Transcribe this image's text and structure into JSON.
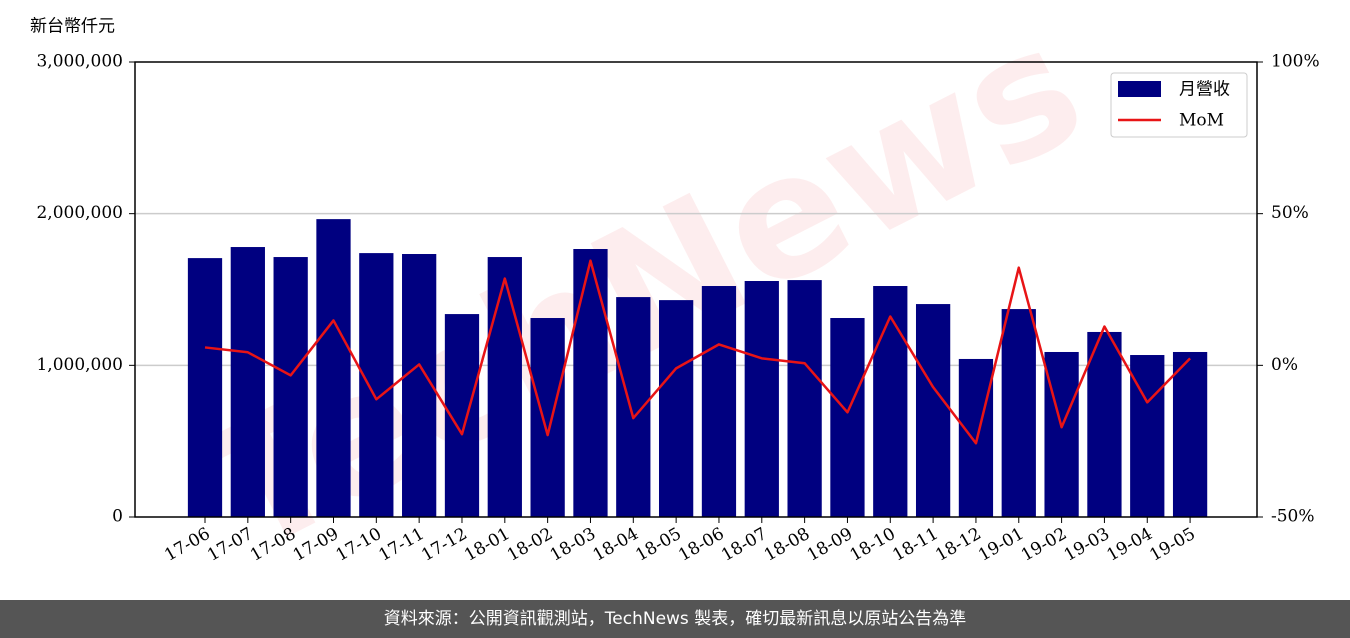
{
  "chart_data": {
    "type": "bar",
    "y_label": "新台幣仟元",
    "watermark": "TechNews",
    "categories": [
      "17-06",
      "17-07",
      "17-08",
      "17-09",
      "17-10",
      "17-11",
      "17-12",
      "18-01",
      "18-02",
      "18-03",
      "18-04",
      "18-05",
      "18-06",
      "18-07",
      "18-08",
      "18-09",
      "18-10",
      "18-11",
      "18-12",
      "19-01",
      "19-02",
      "19-03",
      "19-04",
      "19-05"
    ],
    "series": [
      {
        "name": "月營收",
        "type": "bar",
        "color": "#000080",
        "values": [
          1707000,
          1780000,
          1714000,
          1964000,
          1740000,
          1734000,
          1338000,
          1714000,
          1312000,
          1767000,
          1450000,
          1430000,
          1523000,
          1556000,
          1562000,
          1312000,
          1523000,
          1404000,
          1042000,
          1371000,
          1088000,
          1220000,
          1068000,
          1088000
        ]
      },
      {
        "name": "MoM",
        "type": "line",
        "color": "#e81416",
        "axis": "y2",
        "values": [
          5.9,
          4.3,
          -3.3,
          14.8,
          -11.2,
          0.3,
          -22.7,
          28.6,
          -23.0,
          34.5,
          -17.4,
          -1.0,
          6.9,
          2.3,
          0.7,
          -15.5,
          16.1,
          -7.2,
          -25.7,
          32.2,
          -20.4,
          12.8,
          -12.2,
          2.3
        ]
      }
    ],
    "ylim": [
      0,
      3000000
    ],
    "yticks": [
      0,
      {
        "value": 1000000,
        "label": "1,000,000"
      },
      {
        "value": 2000000,
        "label": "2,000,000"
      },
      {
        "value": 3000000,
        "label": "3,000,000"
      }
    ],
    "y2lim": [
      -50,
      100
    ],
    "y2ticks": [
      {
        "value": -50,
        "label": "-50%"
      },
      {
        "value": 0,
        "label": "0%"
      },
      {
        "value": 50,
        "label": "50%"
      },
      {
        "value": 100,
        "label": "100%"
      }
    ],
    "grid": true,
    "legend": "upper-right",
    "source": "資料來源：公開資訊觀測站，TechNews 製表，確切最新訊息以原站公告為準"
  }
}
